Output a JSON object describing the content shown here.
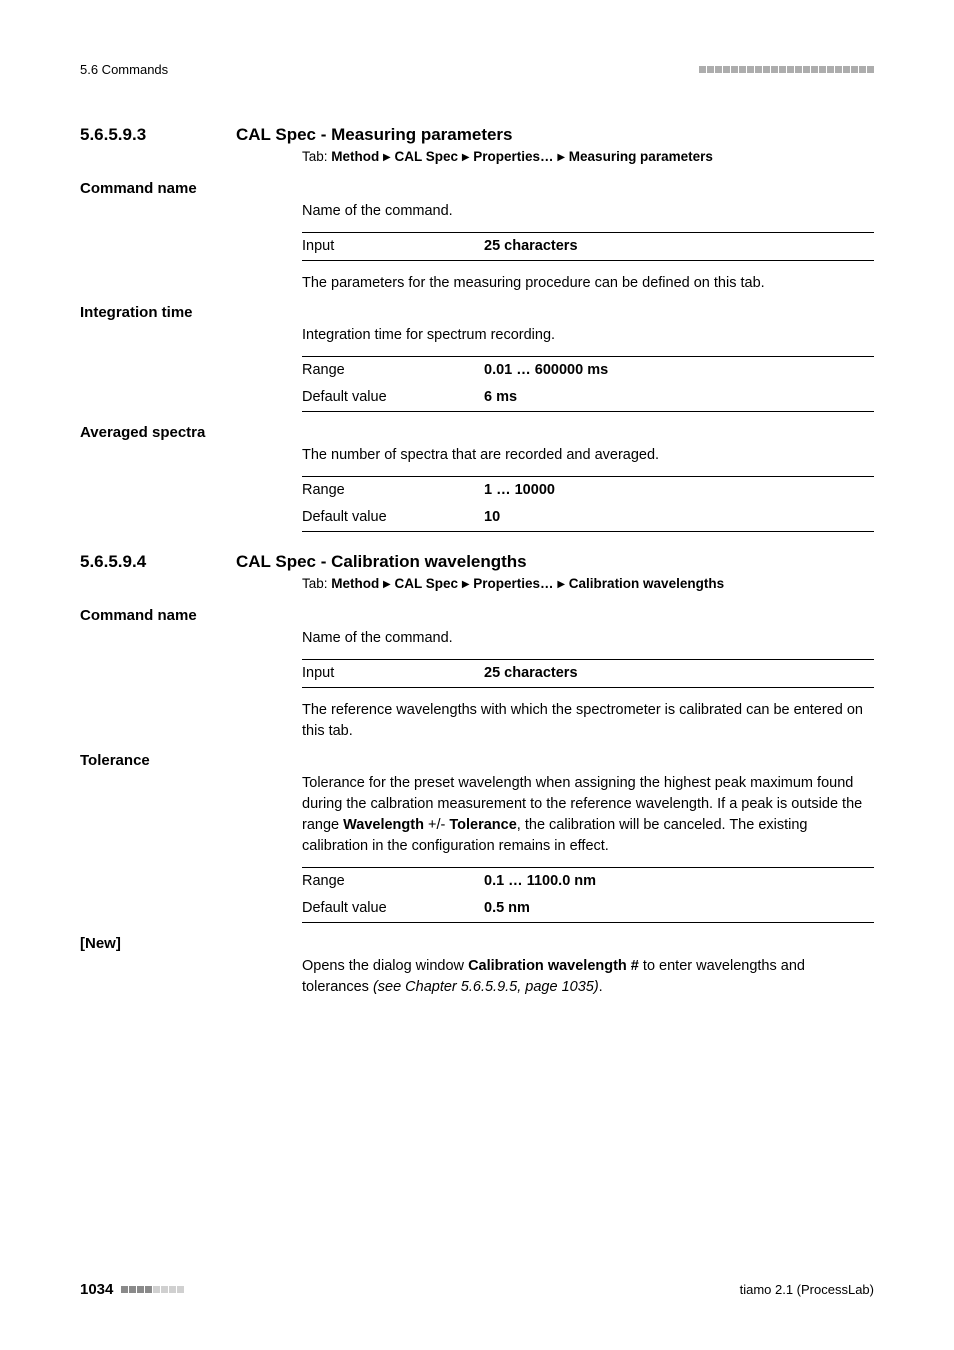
{
  "header": {
    "left": "5.6 Commands"
  },
  "sections": [
    {
      "num": "5.6.5.9.3",
      "title": "CAL Spec - Measuring parameters",
      "tab_prefix": "Tab: ",
      "tab_parts": [
        "Method",
        "CAL Spec",
        "Properties…",
        "Measuring parameters"
      ],
      "params": [
        {
          "label": "Command name",
          "desc_before": "Name of the command.",
          "table": [
            {
              "k": "Input",
              "v": "25 characters",
              "vbold": true,
              "rule": "both"
            }
          ],
          "desc_after": "The parameters for the measuring procedure can be defined on this tab."
        },
        {
          "label": "Integration time",
          "desc_before": "Integration time for spectrum recording.",
          "table": [
            {
              "k": "Range",
              "v": "0.01 … 600000 ms",
              "vbold": true,
              "rule": "top"
            },
            {
              "k": "Default value",
              "v": "6 ms",
              "vbold": true,
              "rule": "bot"
            }
          ]
        },
        {
          "label": "Averaged spectra",
          "desc_before": "The number of spectra that are recorded and averaged.",
          "table": [
            {
              "k": "Range",
              "v": "1 … 10000",
              "vbold": true,
              "rule": "top"
            },
            {
              "k": "Default value",
              "v": "10",
              "vbold": true,
              "rule": "bot"
            }
          ]
        }
      ]
    },
    {
      "num": "5.6.5.9.4",
      "title": "CAL Spec - Calibration wavelengths",
      "tab_prefix": "Tab: ",
      "tab_parts": [
        "Method",
        "CAL Spec",
        "Properties…",
        "Calibration wavelengths"
      ],
      "params": [
        {
          "label": "Command name",
          "desc_before": "Name of the command.",
          "table": [
            {
              "k": "Input",
              "v": "25 characters",
              "vbold": true,
              "rule": "both"
            }
          ],
          "desc_after": "The reference wavelengths with which the spectrometer is calibrated can be entered on this tab."
        },
        {
          "label": "Tolerance",
          "desc_html": "Tolerance for the preset wavelength when assigning the highest peak maximum found during the calbration measurement to the reference wavelength. If a peak is outside the range <span class=\"bold\">Wavelength</span> +/- <span class=\"bold\">Tolerance</span>, the calibration will be canceled. The existing calibration in the configuration remains in effect.",
          "table": [
            {
              "k": "Range",
              "v": "0.1 … 1100.0 nm",
              "vbold": true,
              "rule": "top"
            },
            {
              "k": "Default value",
              "v": "0.5 nm",
              "vbold": true,
              "rule": "bot"
            }
          ]
        },
        {
          "label": "[New]",
          "desc_html": "Opens the dialog window <span class=\"bold\">Calibration wavelength #</span> to enter wavelengths and tolerances <span class=\"italic\">(see Chapter 5.6.5.9.5, page 1035)</span>."
        }
      ]
    }
  ],
  "footer": {
    "page": "1034",
    "right": "tiamo 2.1 (ProcessLab)"
  }
}
